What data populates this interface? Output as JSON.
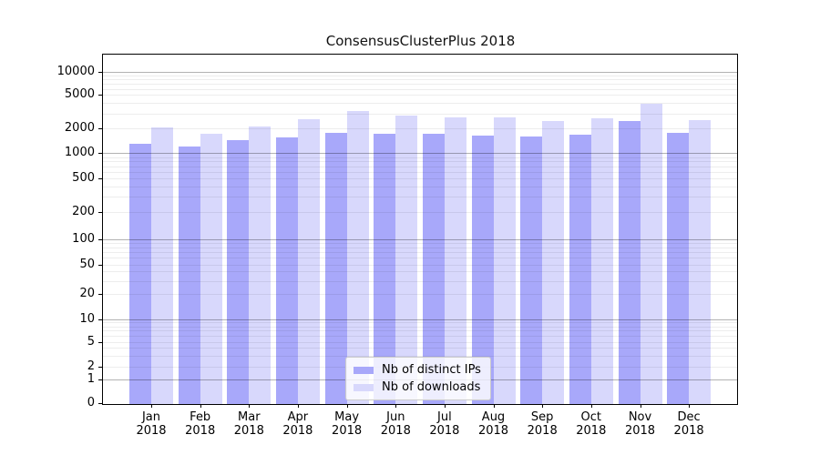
{
  "title": "ConsensusClusterPlus 2018",
  "legend": {
    "position": "lower center",
    "items": [
      {
        "label": "Nb of distinct IPs",
        "color": "#a8a8fa"
      },
      {
        "label": "Nb of downloads",
        "color": "#d8d8fc"
      }
    ]
  },
  "axes": {
    "y_tick_labels": [
      "0",
      "1",
      "2",
      "5",
      "10",
      "20",
      "50",
      "100",
      "200",
      "500",
      "1000",
      "2000",
      "5000",
      "10000"
    ],
    "x_label_line2": "2018"
  },
  "chart_data": {
    "type": "bar",
    "title": "ConsensusClusterPlus 2018",
    "categories": [
      "Jan 2018",
      "Feb 2018",
      "Mar 2018",
      "Apr 2018",
      "May 2018",
      "Jun 2018",
      "Jul 2018",
      "Aug 2018",
      "Sep 2018",
      "Oct 2018",
      "Nov 2018",
      "Dec 2018"
    ],
    "month_labels": [
      "Jan",
      "Feb",
      "Mar",
      "Apr",
      "May",
      "Jun",
      "Jul",
      "Aug",
      "Sep",
      "Oct",
      "Nov",
      "Dec"
    ],
    "series": [
      {
        "name": "Nb of distinct IPs",
        "color": "#a8a8fa",
        "values": [
          1300,
          1200,
          1450,
          1550,
          1800,
          1750,
          1750,
          1650,
          1600,
          1700,
          2450,
          1800
        ]
      },
      {
        "name": "Nb of downloads",
        "color": "#d8d8fc",
        "values": [
          2050,
          1750,
          2100,
          2600,
          3200,
          2850,
          2750,
          2700,
          2450,
          2650,
          3950,
          2500
        ]
      }
    ],
    "yscale": "symlog",
    "y_ticks": [
      0,
      1,
      2,
      5,
      10,
      20,
      50,
      100,
      200,
      500,
      1000,
      2000,
      5000,
      10000
    ],
    "ylim": [
      0,
      16000
    ],
    "grid": true,
    "legend_position": "lower center",
    "xlabel": "",
    "ylabel": ""
  }
}
